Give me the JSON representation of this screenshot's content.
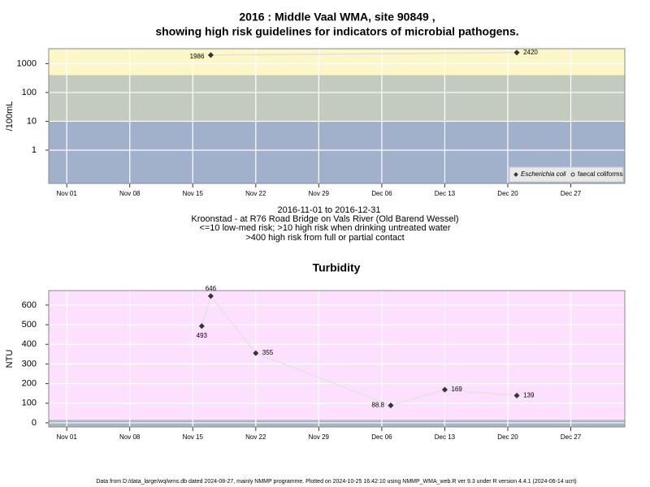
{
  "chart_data": [
    {
      "type": "line",
      "title": "2016 : Middle Vaal WMA, site 90849 ,",
      "subtitle": "showing high risk guidelines for indicators of microbial pathogens.",
      "y_label": "/100mL",
      "log_y": true,
      "x": [
        "2016-11-17",
        "2016-12-21"
      ],
      "series": [
        {
          "name": "Escherichia coli",
          "color": "#333333",
          "values": [
            1986,
            2420
          ]
        },
        {
          "name": "faecal coliforms",
          "color": "#333333",
          "values": [
            null,
            null
          ]
        }
      ],
      "xlim": [
        "2016-10-30",
        "2017-01-02"
      ],
      "xticks": [
        {
          "value": "2016-11-01",
          "label": "Nov 01"
        },
        {
          "value": "2016-11-08",
          "label": "Nov 08"
        },
        {
          "value": "2016-11-15",
          "label": "Nov 15"
        },
        {
          "value": "2016-11-22",
          "label": "Nov 22"
        },
        {
          "value": "2016-11-29",
          "label": "Nov 29"
        },
        {
          "value": "2016-12-06",
          "label": "Dec 06"
        },
        {
          "value": "2016-12-13",
          "label": "Dec 13"
        },
        {
          "value": "2016-12-20",
          "label": "Dec 20"
        },
        {
          "value": "2016-12-27",
          "label": "Dec 27"
        }
      ],
      "ylim": [
        0.07,
        3300
      ],
      "yticks": [
        1,
        10,
        100,
        1000
      ],
      "thresholds": [
        10,
        400
      ],
      "band_colors": [
        "#a1b1cb",
        "#c3cbbf",
        "#fdf7c7"
      ],
      "grid": true,
      "legend": "bottom-right",
      "notes": [
        "2016-11-01 to 2016-12-31",
        "Kroonstad - at R76 Road Bridge on Vals River (Old Barend Wessel)",
        "<=10 low-med risk; >10 high risk when drinking untreated water",
        ">400 high risk from full or partial contact"
      ]
    },
    {
      "type": "line",
      "title": "Turbidity",
      "y_label": "NTU",
      "log_y": false,
      "x": [
        "2016-11-16",
        "2016-11-17",
        "2016-11-22",
        "2016-12-07",
        "2016-12-13",
        "2016-12-21"
      ],
      "series": [
        {
          "color": "#333333",
          "values": [
            493,
            646,
            355,
            88.8,
            169,
            139
          ]
        }
      ],
      "xlim": [
        "2016-10-30",
        "2017-01-02"
      ],
      "xticks": [
        {
          "value": "2016-11-01",
          "label": "Nov 01"
        },
        {
          "value": "2016-11-08",
          "label": "Nov 08"
        },
        {
          "value": "2016-11-15",
          "label": "Nov 15"
        },
        {
          "value": "2016-11-22",
          "label": "Nov 22"
        },
        {
          "value": "2016-11-29",
          "label": "Nov 29"
        },
        {
          "value": "2016-12-06",
          "label": "Dec 06"
        },
        {
          "value": "2016-12-13",
          "label": "Dec 13"
        },
        {
          "value": "2016-12-20",
          "label": "Dec 20"
        },
        {
          "value": "2016-12-27",
          "label": "Dec 27"
        }
      ],
      "ylim": [
        -21,
        674
      ],
      "yticks": [
        0,
        100,
        200,
        300,
        400,
        500,
        600
      ],
      "thresholds": [
        15
      ],
      "band_colors": [
        "#a7b4c4",
        "#fde0fd"
      ],
      "grid": true
    }
  ],
  "footer": "Data from D:/data_large/wq/wms.db dated 2024-08-27, mainly NMMP programme. Plotted on 2024-10-25 16:42:10 using NMMP_WMA_web.R ver 9.3 under R version 4.4.1 (2024-06-14 ucrt)"
}
